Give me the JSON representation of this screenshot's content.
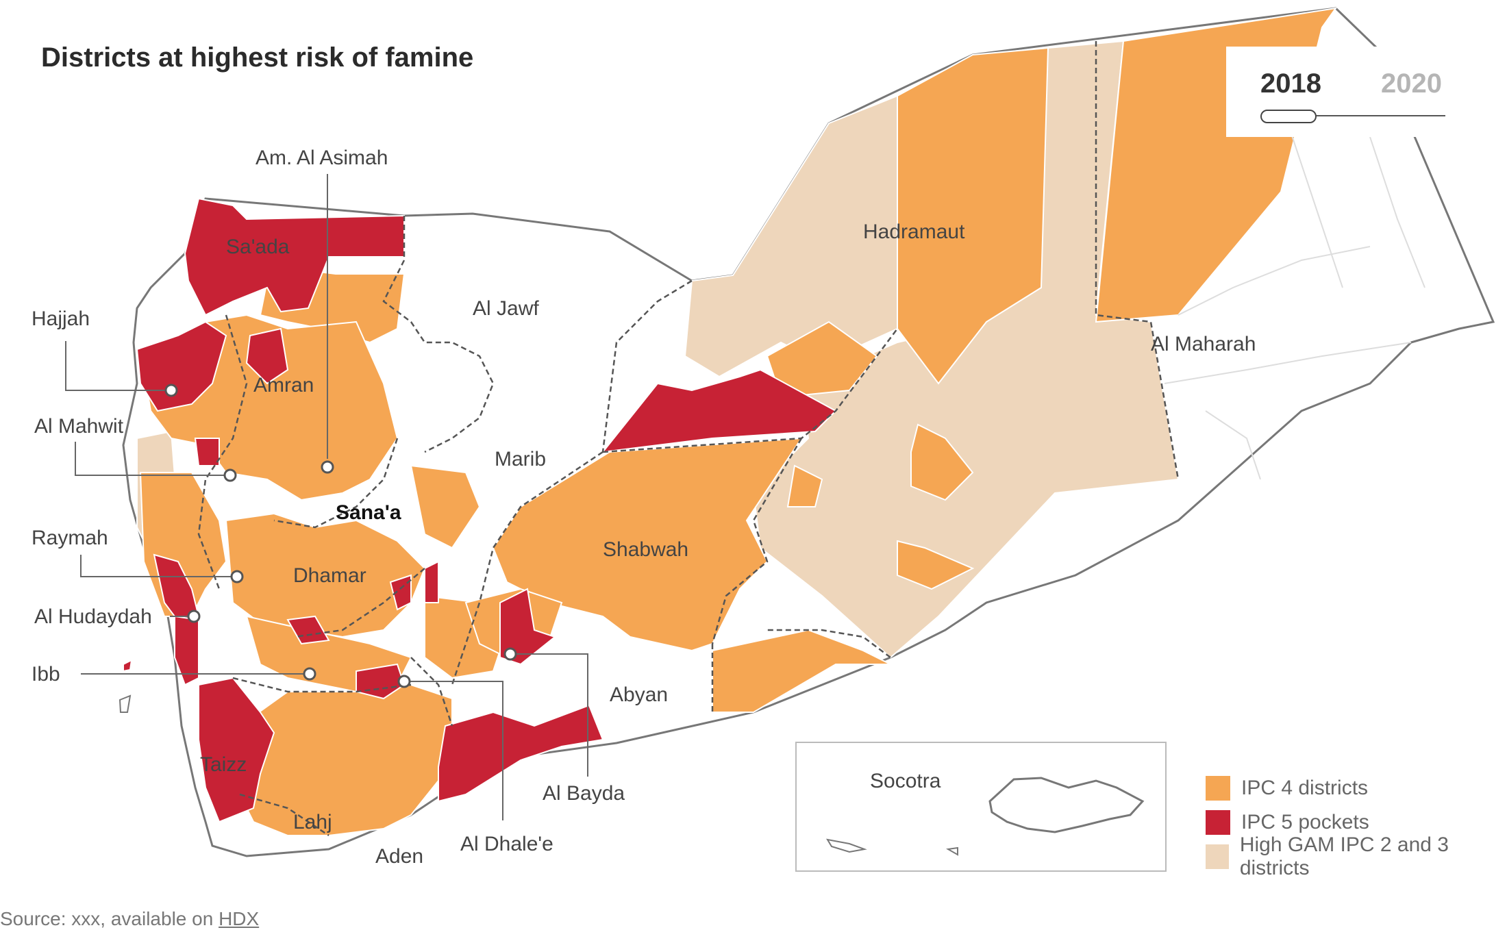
{
  "title": "Districts at highest risk of  famine",
  "year_toggle": {
    "active": "2018",
    "inactive": "2020"
  },
  "legend": [
    {
      "label": "IPC 4 districts",
      "color": "#f5a653"
    },
    {
      "label": "IPC 5 pockets",
      "color": "#c72235"
    },
    {
      "label": "High GAM IPC 2 and 3 districts",
      "color": "#eed6bb"
    }
  ],
  "source": {
    "prefix": "Source: xxx, available on ",
    "link": "HDX"
  },
  "colors": {
    "ipc4": "#f5a653",
    "ipc5": "#c72235",
    "gam": "#eed6bb",
    "none": "#ffffff",
    "border": "#777777"
  },
  "regions": {
    "am_al_asimah": "Am. Al Asimah",
    "saada": "Sa'ada",
    "hajjah": "Hajjah",
    "amran": "Amran",
    "al_mahwit": "Al Mahwit",
    "al_jawf": "Al Jawf",
    "hadramaut": "Hadramaut",
    "al_maharah": "Al Maharah",
    "marib": "Marib",
    "sanaa": "Sana'a",
    "raymah": "Raymah",
    "dhamar": "Dhamar",
    "shabwah": "Shabwah",
    "al_hudaydah": "Al Hudaydah",
    "ibb": "Ibb",
    "abyan": "Abyan",
    "taizz": "Taizz",
    "al_bayda": "Al Bayda",
    "socotra": "Socotra",
    "lahj": "Lahj",
    "aden": "Aden",
    "al_dhalee": "Al Dhale'e"
  }
}
